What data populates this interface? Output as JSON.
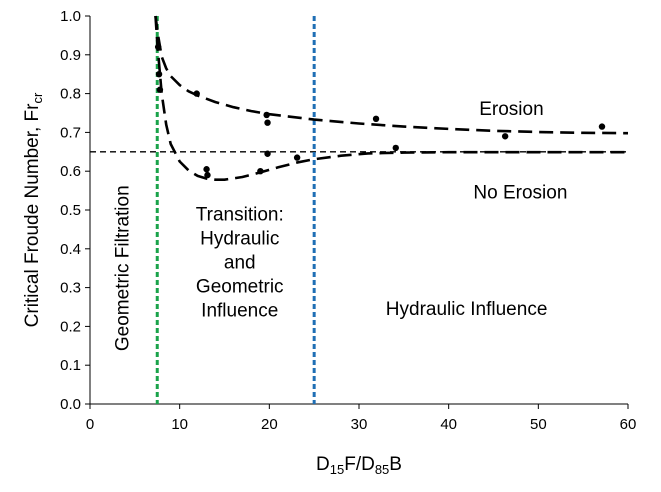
{
  "chart_data": {
    "type": "scatter",
    "xlabel": {
      "main": "D",
      "sub1": "15",
      "mid": "F/D",
      "sub2": "85",
      "end": "B"
    },
    "ylabel": {
      "main": "Critical Froude Number, Fr",
      "sub": "cr"
    },
    "xlim": [
      0,
      60
    ],
    "ylim": [
      0.0,
      1.0
    ],
    "x_ticks": [
      0,
      10,
      20,
      30,
      40,
      50,
      60
    ],
    "x_tick_labels": [
      "0",
      "10",
      "20",
      "30",
      "40",
      "50",
      "60"
    ],
    "y_ticks": [
      0.0,
      0.1,
      0.2,
      0.3,
      0.4,
      0.5,
      0.6,
      0.7,
      0.8,
      0.9,
      1.0
    ],
    "y_tick_labels": [
      "0.0",
      "0.1",
      "0.2",
      "0.3",
      "0.4",
      "0.5",
      "0.6",
      "0.7",
      "0.8",
      "0.9",
      "1.0"
    ],
    "grid": false,
    "points": [
      {
        "x": 7.6,
        "y": 0.92
      },
      {
        "x": 7.7,
        "y": 0.85
      },
      {
        "x": 7.8,
        "y": 0.81
      },
      {
        "x": 11.9,
        "y": 0.8
      },
      {
        "x": 13.0,
        "y": 0.605
      },
      {
        "x": 13.1,
        "y": 0.59
      },
      {
        "x": 19.0,
        "y": 0.6
      },
      {
        "x": 19.7,
        "y": 0.745
      },
      {
        "x": 19.8,
        "y": 0.725
      },
      {
        "x": 19.8,
        "y": 0.645
      },
      {
        "x": 23.1,
        "y": 0.635
      },
      {
        "x": 31.9,
        "y": 0.735
      },
      {
        "x": 34.1,
        "y": 0.66
      },
      {
        "x": 46.3,
        "y": 0.69
      },
      {
        "x": 57.1,
        "y": 0.715
      }
    ],
    "upper_curve": [
      [
        7.3,
        1.0
      ],
      [
        7.6,
        0.95
      ],
      [
        8.0,
        0.895
      ],
      [
        8.5,
        0.865
      ],
      [
        9,
        0.845
      ],
      [
        10,
        0.822
      ],
      [
        11,
        0.806
      ],
      [
        12,
        0.795
      ],
      [
        14,
        0.778
      ],
      [
        16,
        0.765
      ],
      [
        18,
        0.755
      ],
      [
        20,
        0.747
      ],
      [
        25,
        0.733
      ],
      [
        30,
        0.723
      ],
      [
        35,
        0.715
      ],
      [
        40,
        0.709
      ],
      [
        45,
        0.704
      ],
      [
        50,
        0.701
      ],
      [
        55,
        0.699
      ],
      [
        60,
        0.698
      ]
    ],
    "lower_curve": [
      [
        7.3,
        1.0
      ],
      [
        7.5,
        0.93
      ],
      [
        8.0,
        0.8
      ],
      [
        8.5,
        0.72
      ],
      [
        9,
        0.67
      ],
      [
        10,
        0.625
      ],
      [
        11,
        0.602
      ],
      [
        12,
        0.588
      ],
      [
        13,
        0.581
      ],
      [
        14,
        0.578
      ],
      [
        15,
        0.578
      ],
      [
        17,
        0.585
      ],
      [
        19,
        0.597
      ],
      [
        21,
        0.61
      ],
      [
        23,
        0.622
      ],
      [
        25,
        0.631
      ],
      [
        28,
        0.64
      ],
      [
        31,
        0.646
      ],
      [
        35,
        0.648
      ],
      [
        40,
        0.649
      ],
      [
        60,
        0.649
      ]
    ],
    "threshold_line": {
      "y": 0.65
    },
    "vertical_lines": [
      {
        "x": 7.5,
        "color": "#1aa34a"
      },
      {
        "x": 25,
        "color": "#1f6fb5"
      }
    ],
    "annotations": [
      {
        "text": [
          "Erosion"
        ],
        "x": 47,
        "y": 0.76
      },
      {
        "text": [
          "No Erosion"
        ],
        "x": 48,
        "y": 0.545
      },
      {
        "text": [
          "Transition:",
          "Hydraulic",
          "and",
          "Geometric",
          "Influence"
        ],
        "x": 16.7,
        "y": 0.365
      },
      {
        "text": [
          "Hydraulic Influence"
        ],
        "x": 42,
        "y": 0.245
      },
      {
        "text": [
          "Geometric Filtration"
        ],
        "x": 3.6,
        "y": 0.35,
        "rotate": -90
      }
    ]
  }
}
